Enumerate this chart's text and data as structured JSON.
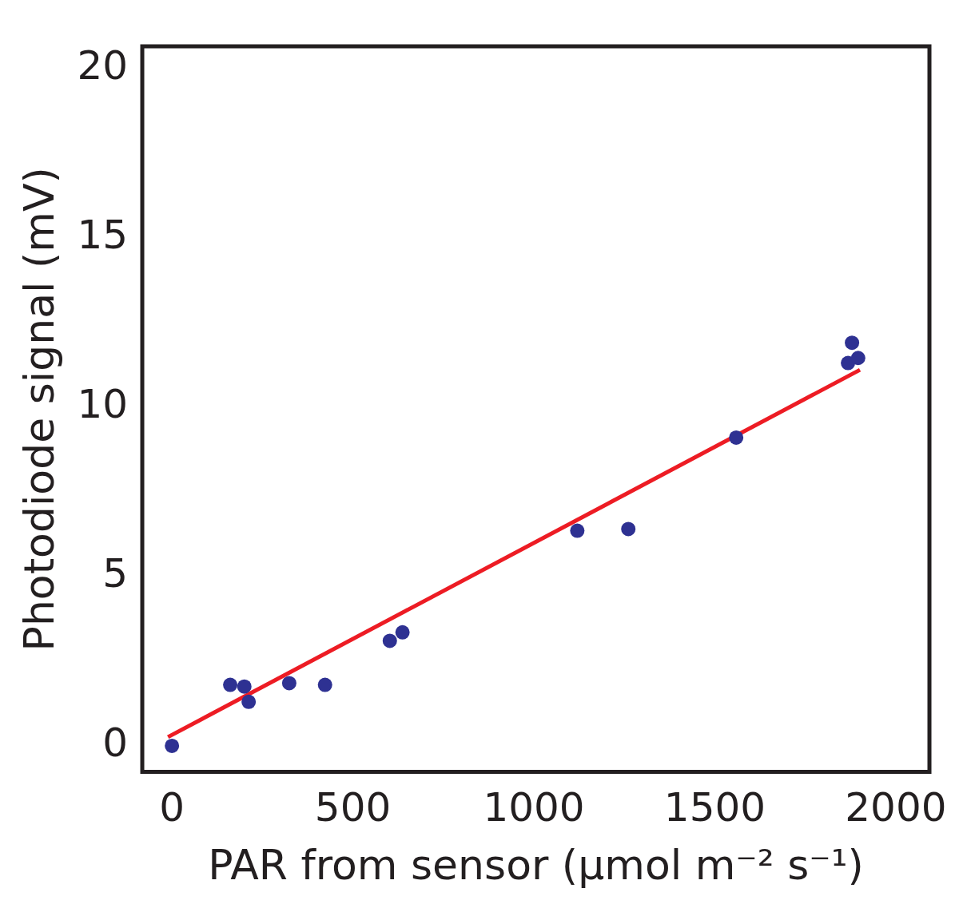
{
  "chart_data": {
    "type": "scatter",
    "xlabel": "PAR from sensor (µmol m⁻² s⁻¹)",
    "ylabel": "Photodiode signal (mV)",
    "xlim": [
      -82,
      2093
    ],
    "ylim": [
      -0.77,
      20.65
    ],
    "xticks": [
      0,
      500,
      1000,
      1500,
      2000
    ],
    "yticks": [
      0,
      5,
      10,
      15,
      20
    ],
    "grid": false,
    "legend": false,
    "marker": "circle",
    "series": [
      {
        "color": "#2e3192",
        "x": [
          0,
          161,
          200,
          212,
          324,
          423,
          602,
          637,
          1120,
          1261,
          1559,
          1868,
          1879,
          1896
        ],
        "values": [
          0,
          1.8,
          1.75,
          1.3,
          1.85,
          1.8,
          3.1,
          3.35,
          6.35,
          6.4,
          9.1,
          11.3,
          11.9,
          11.45
        ]
      },
      {
        "type": "line",
        "marker": "none",
        "color": "#ed1c24",
        "x": [
          -11,
          1901
        ],
        "values": [
          0.26,
          11.1
        ]
      }
    ]
  }
}
